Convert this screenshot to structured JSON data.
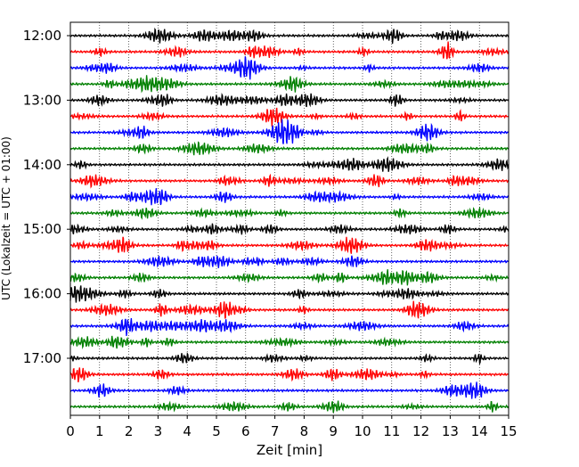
{
  "chart_data": {
    "type": "line",
    "title": "",
    "xlabel": "Zeit  [min]",
    "ylabel": "UTC (Lokalzeit = UTC + 01:00)",
    "xlim": [
      0,
      15
    ],
    "x_ticks": [
      0,
      1,
      2,
      3,
      4,
      5,
      6,
      7,
      8,
      9,
      10,
      11,
      12,
      13,
      14,
      15
    ],
    "x_tick_labels": [
      "0",
      "1",
      "2",
      "3",
      "4",
      "5",
      "6",
      "7",
      "8",
      "9",
      "10",
      "11",
      "12",
      "13",
      "14",
      "15"
    ],
    "y_ticks": [
      {
        "label": "12:00",
        "minutes_after_start": 0
      },
      {
        "label": "13:00",
        "minutes_after_start": 60
      },
      {
        "label": "14:00",
        "minutes_after_start": 120
      },
      {
        "label": "15:00",
        "minutes_after_start": 180
      },
      {
        "label": "16:00",
        "minutes_after_start": 240
      },
      {
        "label": "17:00",
        "minutes_after_start": 300
      }
    ],
    "trace_interval_min": 15,
    "trace_count": 24,
    "trace_colors": [
      "#000000",
      "#ff0000",
      "#0000ff",
      "#008000"
    ],
    "grid": "vertical dotted lines at each minute",
    "legend": "none"
  }
}
